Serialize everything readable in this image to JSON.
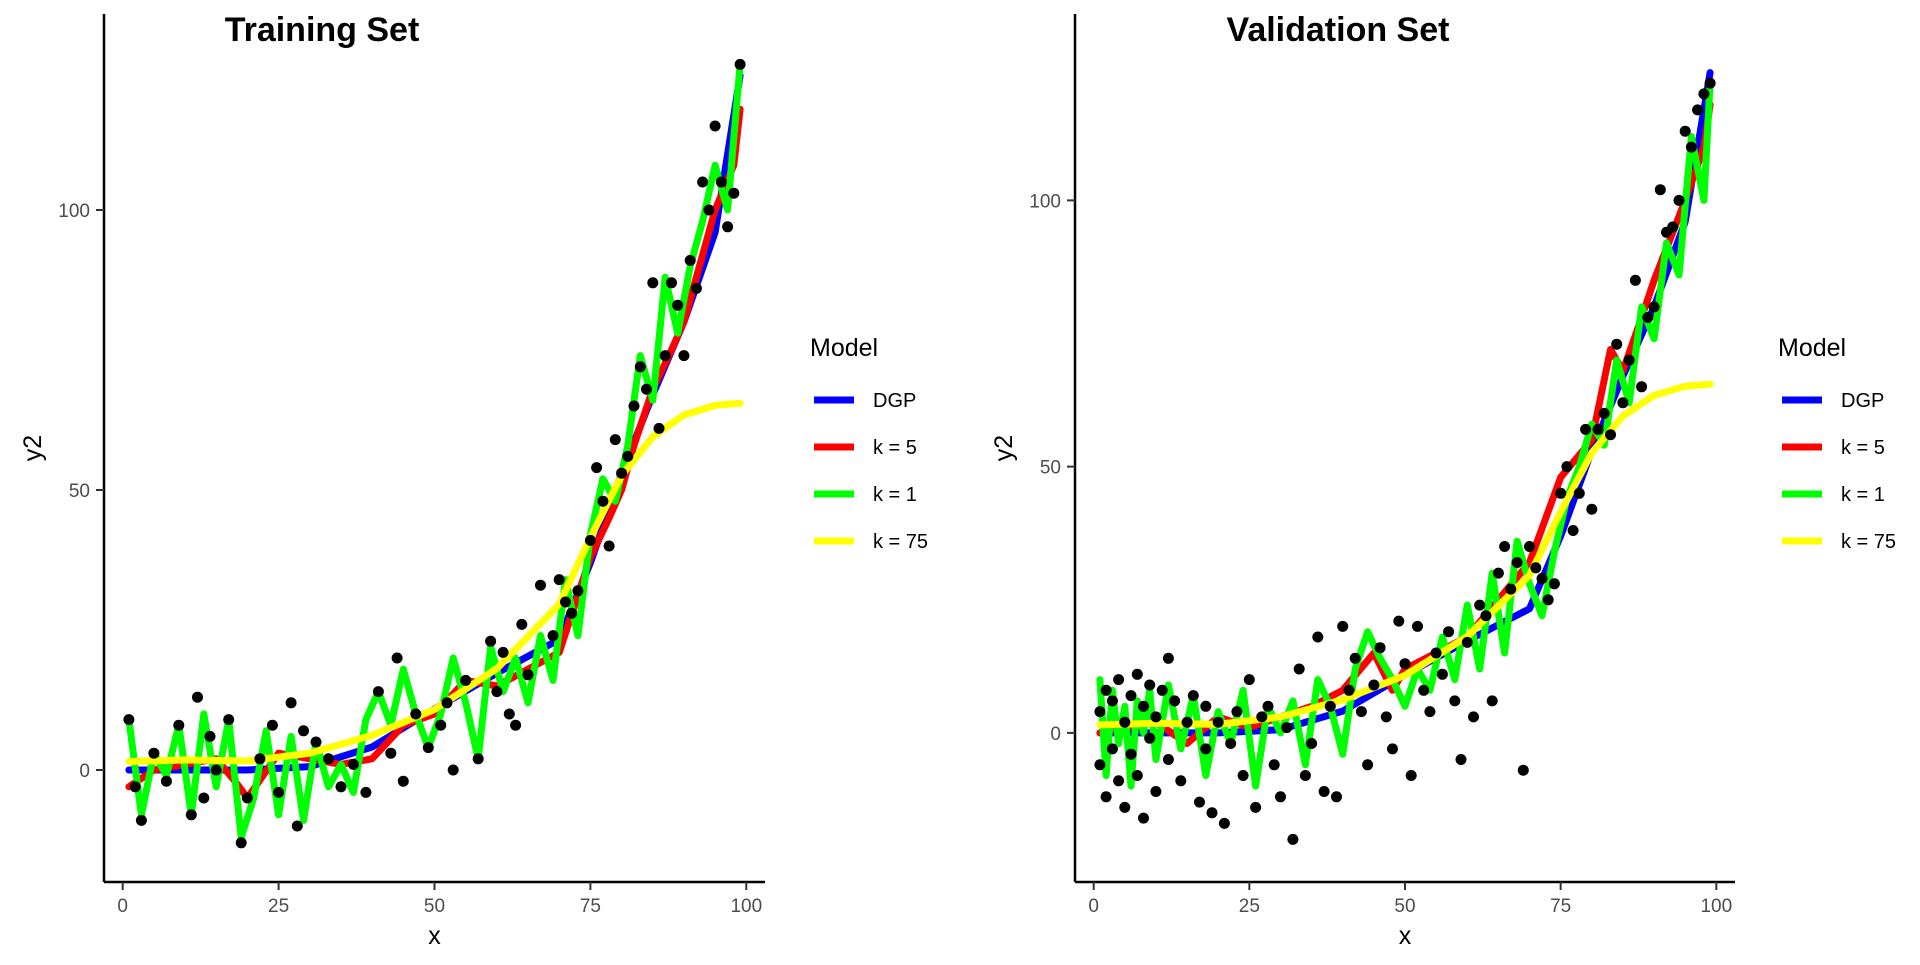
{
  "chart_data": [
    {
      "type": "line",
      "title": "Training Set",
      "xlabel": "x",
      "ylabel": "y2",
      "xlim": [
        -3,
        103
      ],
      "ylim": [
        -20,
        135
      ],
      "x_ticks": [
        0,
        25,
        50,
        75,
        100
      ],
      "y_ticks": [
        0,
        50,
        100
      ],
      "grid": false,
      "legend": {
        "title": "Model",
        "placement": "right",
        "entries": [
          {
            "name": "DGP",
            "color": "#0000ff"
          },
          {
            "name": "k = 5",
            "color": "#ff0000"
          },
          {
            "name": "k = 1",
            "color": "#00ff00"
          },
          {
            "name": "k = 75",
            "color": "#ffff00"
          }
        ]
      },
      "series": [
        {
          "name": "DGP",
          "color": "#0000ff",
          "x": [
            1,
            10,
            20,
            30,
            40,
            50,
            60,
            70,
            75,
            80,
            85,
            90,
            95,
            99
          ],
          "y": [
            0,
            0,
            0,
            0.6,
            4.1,
            10.9,
            17.3,
            23.3,
            37,
            53,
            67,
            80,
            96,
            124
          ]
        },
        {
          "name": "k = 5",
          "color": "#ff0000",
          "x": [
            1,
            5,
            10,
            15,
            18,
            20,
            25,
            30,
            35,
            40,
            45,
            50,
            55,
            60,
            65,
            70,
            75,
            78,
            80,
            82,
            85,
            88,
            90,
            95,
            98,
            99
          ],
          "y": [
            -3,
            0,
            1,
            2,
            -2,
            -5,
            3,
            2,
            1,
            2,
            8,
            10,
            16,
            15,
            18,
            21,
            38,
            45,
            50,
            58,
            68,
            75,
            80,
            100,
            108,
            118
          ]
        },
        {
          "name": "k = 1",
          "color": "#00ff00",
          "x": [
            1,
            3,
            5,
            7,
            9,
            11,
            13,
            15,
            17,
            19,
            21,
            23,
            25,
            27,
            29,
            31,
            33,
            35,
            37,
            39,
            41,
            43,
            45,
            47,
            49,
            51,
            53,
            55,
            57,
            59,
            61,
            63,
            65,
            67,
            69,
            71,
            73,
            75,
            77,
            79,
            81,
            83,
            85,
            87,
            89,
            91,
            93,
            95,
            97,
            99
          ],
          "y": [
            9,
            -8,
            3,
            -1,
            8,
            -8,
            10,
            -3,
            9,
            -12,
            -5,
            7,
            -8,
            6,
            -9,
            5,
            -3,
            1,
            -4,
            9,
            14,
            8,
            18,
            10,
            4,
            10,
            20,
            12,
            2,
            22,
            14,
            20,
            12,
            24,
            16,
            34,
            24,
            42,
            52,
            48,
            58,
            74,
            66,
            88,
            78,
            90,
            98,
            108,
            100,
            126
          ]
        },
        {
          "name": "k = 75",
          "color": "#ffff00",
          "x": [
            1,
            10,
            20,
            30,
            40,
            50,
            60,
            70,
            75,
            80,
            85,
            90,
            95,
            99
          ],
          "y": [
            1.5,
            1.8,
            1.6,
            3.0,
            6.2,
            10.8,
            18.1,
            29.6,
            41.5,
            52.6,
            59.5,
            63.4,
            65.1,
            65.5
          ]
        },
        {
          "name": "Observed",
          "color": "#000000",
          "mark": "point",
          "x": [
            1,
            2,
            3,
            5,
            7,
            9,
            11,
            12,
            13,
            14,
            15,
            17,
            19,
            20,
            22,
            24,
            25,
            27,
            28,
            29,
            31,
            33,
            35,
            37,
            39,
            41,
            43,
            44,
            45,
            47,
            49,
            51,
            52,
            53,
            55,
            57,
            59,
            60,
            61,
            62,
            63,
            64,
            65,
            67,
            69,
            70,
            71,
            72,
            73,
            75,
            76,
            77,
            78,
            79,
            80,
            81,
            82,
            83,
            84,
            85,
            86,
            87,
            88,
            89,
            90,
            91,
            92,
            93,
            94,
            95,
            96,
            97,
            98,
            99
          ],
          "y": [
            9,
            -3,
            -9,
            3,
            -2,
            8,
            -8,
            13,
            -5,
            6,
            0,
            9,
            -13,
            -5,
            2,
            8,
            -4,
            12,
            -10,
            7,
            5,
            2,
            -3,
            1,
            -4,
            14,
            3,
            20,
            -2,
            10,
            4,
            8,
            12,
            0,
            16,
            2,
            23,
            14,
            21,
            10,
            8,
            26,
            17,
            33,
            24,
            34,
            30,
            28,
            32,
            41,
            54,
            48,
            40,
            59,
            53,
            56,
            65,
            72,
            68,
            87,
            61,
            74,
            87,
            83,
            74,
            91,
            86,
            105,
            100,
            115,
            105,
            97,
            103,
            126
          ]
        }
      ]
    },
    {
      "type": "line",
      "title": "Validation Set",
      "xlabel": "x",
      "ylabel": "y2",
      "xlim": [
        -3,
        103
      ],
      "ylim": [
        -28,
        135
      ],
      "x_ticks": [
        0,
        25,
        50,
        75,
        100
      ],
      "y_ticks": [
        0,
        50,
        100
      ],
      "grid": false,
      "legend": {
        "title": "Model",
        "placement": "right",
        "entries": [
          {
            "name": "DGP",
            "color": "#0000ff"
          },
          {
            "name": "k = 5",
            "color": "#ff0000"
          },
          {
            "name": "k = 1",
            "color": "#00ff00"
          },
          {
            "name": "k = 75",
            "color": "#ffff00"
          }
        ]
      },
      "series": [
        {
          "name": "DGP",
          "color": "#0000ff",
          "x": [
            1,
            10,
            20,
            30,
            40,
            50,
            60,
            70,
            75,
            80,
            85,
            90,
            95,
            99
          ],
          "y": [
            0,
            0,
            0,
            0.6,
            4.1,
            10.9,
            17.3,
            23.3,
            37,
            53,
            67,
            80,
            96,
            124
          ]
        },
        {
          "name": "k = 5",
          "color": "#ff0000",
          "x": [
            1,
            5,
            10,
            15,
            20,
            25,
            30,
            35,
            40,
            45,
            48,
            50,
            55,
            60,
            65,
            70,
            75,
            80,
            83,
            85,
            88,
            90,
            95,
            98,
            99
          ],
          "y": [
            0,
            1,
            2,
            -2,
            3,
            1,
            3,
            5,
            8,
            15,
            8,
            12,
            15,
            18,
            25,
            32,
            48,
            55,
            72,
            68,
            78,
            85,
            100,
            110,
            118
          ]
        },
        {
          "name": "k = 1",
          "color": "#00ff00",
          "x": [
            1,
            2,
            3,
            4,
            5,
            6,
            7,
            8,
            9,
            10,
            12,
            14,
            16,
            18,
            20,
            22,
            24,
            26,
            28,
            30,
            32,
            34,
            36,
            38,
            40,
            42,
            44,
            46,
            48,
            50,
            52,
            54,
            56,
            58,
            60,
            62,
            64,
            66,
            68,
            70,
            72,
            74,
            76,
            78,
            80,
            82,
            84,
            86,
            88,
            90,
            92,
            94,
            96,
            98,
            99
          ],
          "y": [
            10,
            -8,
            8,
            -2,
            5,
            -10,
            6,
            0,
            8,
            -5,
            9,
            -3,
            7,
            -8,
            4,
            -2,
            8,
            -10,
            5,
            0,
            6,
            -6,
            10,
            5,
            -4,
            12,
            19,
            14,
            10,
            5,
            12,
            8,
            18,
            10,
            24,
            12,
            30,
            15,
            36,
            28,
            22,
            34,
            44,
            50,
            58,
            54,
            70,
            62,
            80,
            74,
            92,
            86,
            112,
            100,
            122
          ]
        },
        {
          "name": "k = 75",
          "color": "#ffff00",
          "x": [
            1,
            10,
            20,
            30,
            40,
            50,
            60,
            70,
            75,
            80,
            85,
            90,
            95,
            99
          ],
          "y": [
            1.5,
            1.8,
            1.6,
            3.0,
            6.2,
            10.8,
            18.1,
            29.6,
            41.5,
            52.6,
            59.5,
            63.4,
            65.1,
            65.5
          ]
        },
        {
          "name": "Observed",
          "color": "#000000",
          "mark": "point",
          "x": [
            1,
            1,
            2,
            2,
            3,
            3,
            4,
            4,
            5,
            5,
            6,
            6,
            7,
            7,
            8,
            8,
            9,
            9,
            10,
            10,
            11,
            12,
            12,
            13,
            14,
            15,
            16,
            17,
            18,
            18,
            19,
            20,
            21,
            22,
            23,
            24,
            25,
            26,
            27,
            28,
            29,
            30,
            31,
            32,
            33,
            34,
            35,
            36,
            37,
            38,
            39,
            40,
            41,
            42,
            43,
            44,
            45,
            46,
            47,
            48,
            49,
            50,
            51,
            52,
            53,
            54,
            55,
            56,
            57,
            58,
            59,
            60,
            61,
            62,
            63,
            64,
            65,
            66,
            67,
            68,
            69,
            70,
            71,
            72,
            73,
            74,
            75,
            76,
            77,
            78,
            79,
            80,
            81,
            82,
            83,
            84,
            85,
            86,
            87,
            88,
            89,
            90,
            91,
            92,
            93,
            94,
            95,
            96,
            97,
            98,
            99
          ],
          "y": [
            4,
            -6,
            -12,
            8,
            -3,
            6,
            -9,
            10,
            2,
            -14,
            7,
            -4,
            11,
            -8,
            5,
            -16,
            9,
            -1,
            3,
            -11,
            8,
            14,
            -5,
            6,
            -9,
            2,
            7,
            -13,
            -3,
            5,
            -15,
            2,
            -17,
            -2,
            4,
            -8,
            10,
            -14,
            3,
            5,
            -6,
            -12,
            1,
            -20,
            12,
            -8,
            -2,
            18,
            -11,
            5,
            -12,
            20,
            8,
            14,
            4,
            -6,
            9,
            16,
            3,
            -3,
            21,
            13,
            -8,
            20,
            8,
            4,
            15,
            11,
            19,
            6,
            -5,
            17,
            3,
            24,
            22,
            6,
            30,
            35,
            27,
            32,
            -7,
            35,
            31,
            29,
            25,
            28,
            45,
            50,
            38,
            45,
            57,
            42,
            57,
            60,
            56,
            73,
            62,
            70,
            85,
            65,
            78,
            80,
            102,
            94,
            95,
            100,
            113,
            110,
            117,
            120,
            122
          ]
        }
      ]
    }
  ]
}
